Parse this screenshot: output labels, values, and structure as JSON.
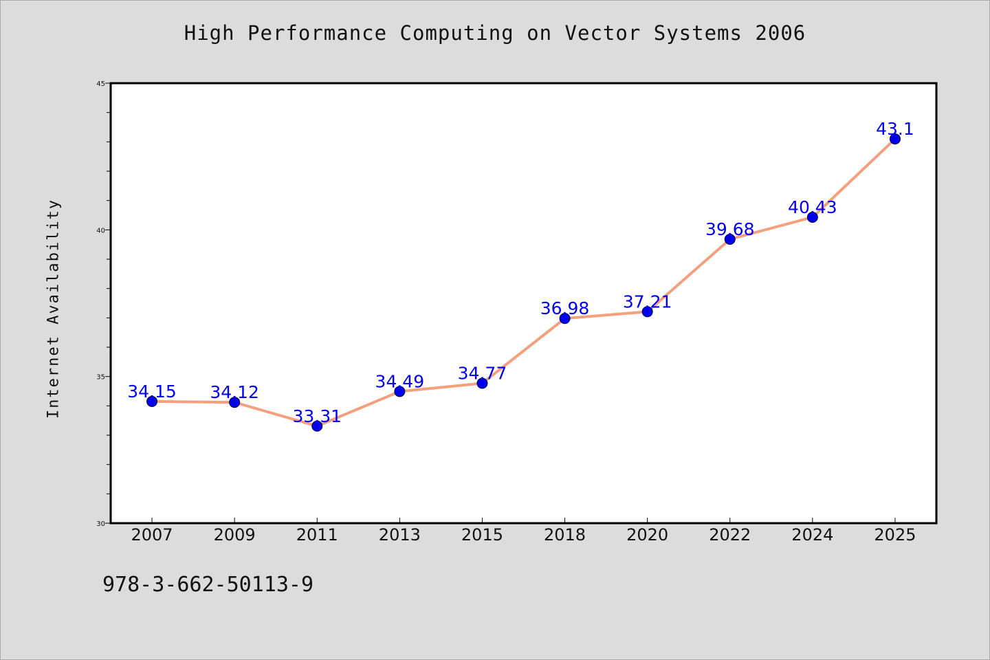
{
  "footer": {
    "isbn": "978-3-662-50113-9"
  },
  "chart_data": {
    "type": "line",
    "title": "High Performance Computing on Vector Systems 2006",
    "xlabel": "",
    "ylabel": "Internet Availability",
    "categories": [
      "2007",
      "2009",
      "2011",
      "2013",
      "2015",
      "2018",
      "2020",
      "2022",
      "2024",
      "2025"
    ],
    "series": [
      {
        "values": [
          34.15,
          34.12,
          33.31,
          34.49,
          34.77,
          36.98,
          37.21,
          39.68,
          40.43,
          43.1
        ],
        "labels": [
          "34.15",
          "34.12",
          "33.31",
          "34.49",
          "34.77",
          "36.98",
          "37.21",
          "39.68",
          "40.43",
          "43.1"
        ],
        "line_color": "#f4a07f",
        "marker_color": "#0000ee",
        "label_color": "#0000ee"
      }
    ],
    "ylim": [
      30,
      45
    ],
    "yticks": [
      30,
      35,
      40,
      45
    ],
    "ytick_labels": [
      "30",
      "35",
      "40",
      "45"
    ],
    "grid": false,
    "legend": "none",
    "plot_background": "#ffffff",
    "page_background": "#dcdcdc"
  }
}
